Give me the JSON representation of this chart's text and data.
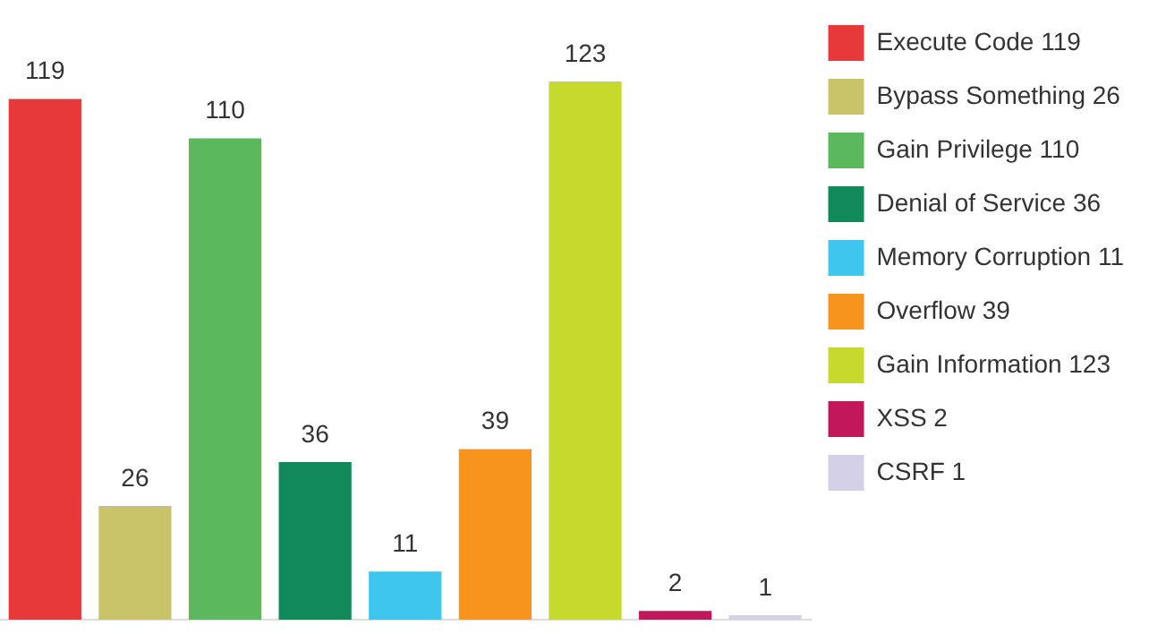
{
  "chart_data": {
    "type": "bar",
    "categories": [
      null,
      null,
      null,
      null,
      null,
      null,
      null,
      null,
      null
    ],
    "series": [
      {
        "name": "Execute Code 119",
        "color": "#e8393a",
        "values": [
          119,
          null,
          null,
          null,
          null,
          null,
          null,
          null,
          null
        ]
      },
      {
        "name": "Bypass Something 26",
        "color": "#c9c46a",
        "values": [
          null,
          26,
          null,
          null,
          null,
          null,
          null,
          null,
          null
        ]
      },
      {
        "name": "Gain Privilege 110",
        "color": "#5cb85c",
        "values": [
          null,
          null,
          110,
          null,
          null,
          null,
          null,
          null,
          null
        ]
      },
      {
        "name": "Denial of Service 36",
        "color": "#12895a",
        "values": [
          null,
          null,
          null,
          36,
          null,
          null,
          null,
          null,
          null
        ]
      },
      {
        "name": "Memory Corruption 11",
        "color": "#3ec6ef",
        "values": [
          null,
          null,
          null,
          null,
          11,
          null,
          null,
          null,
          null
        ]
      },
      {
        "name": "Overflow 39",
        "color": "#f7941d",
        "values": [
          null,
          null,
          null,
          null,
          null,
          39,
          null,
          null,
          null
        ]
      },
      {
        "name": "Gain Information 123",
        "color": "#c6d92d",
        "values": [
          null,
          null,
          null,
          null,
          null,
          null,
          123,
          null,
          null
        ]
      },
      {
        "name": "XSS 2",
        "color": "#c2185b",
        "values": [
          null,
          null,
          null,
          null,
          null,
          null,
          null,
          2,
          null
        ]
      },
      {
        "name": "CSRF 1",
        "color": "#d4d0e8",
        "values": [
          null,
          null,
          null,
          null,
          null,
          null,
          null,
          null,
          1
        ]
      }
    ],
    "stacked": true,
    "data_labels": true,
    "legend": "right",
    "tick_labels": false,
    "grid": false
  }
}
